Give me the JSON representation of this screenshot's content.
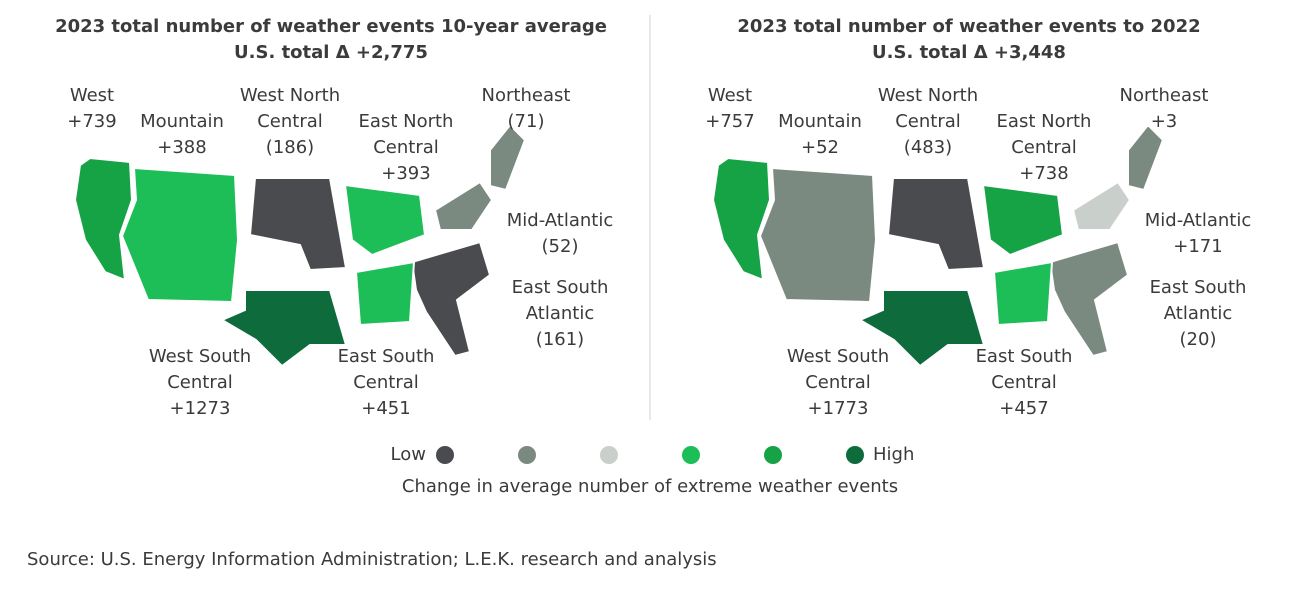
{
  "panels": [
    {
      "title": "2023 total number of weather events 10-year average",
      "subtitle": "U.S. total Δ +2,775",
      "regions": [
        {
          "name_lines": [
            "West"
          ],
          "value": "+739",
          "color": "#16a346"
        },
        {
          "name_lines": [
            "Mountain"
          ],
          "value": "+388",
          "color": "#1dbd58"
        },
        {
          "name_lines": [
            "West North",
            "Central"
          ],
          "value": "(186)",
          "color": "#4a4b4e"
        },
        {
          "name_lines": [
            "East North",
            "Central"
          ],
          "value": "+393",
          "color": "#1dbd58"
        },
        {
          "name_lines": [
            "Northeast"
          ],
          "value": "(71)",
          "color": "#7b8a80"
        },
        {
          "name_lines": [
            "Mid-Atlantic"
          ],
          "value": "(52)",
          "color": "#7b8a80"
        },
        {
          "name_lines": [
            "East South",
            "Atlantic"
          ],
          "value": "(161)",
          "color": "#4a4b4e"
        },
        {
          "name_lines": [
            "West South",
            "Central"
          ],
          "value": "+1273",
          "color": "#0e6b3b"
        },
        {
          "name_lines": [
            "East South",
            "Central"
          ],
          "value": "+451",
          "color": "#1dbd58"
        }
      ]
    },
    {
      "title": "2023 total number of weather events to 2022",
      "subtitle": "U.S. total Δ +3,448",
      "regions": [
        {
          "name_lines": [
            "West"
          ],
          "value": "+757",
          "color": "#16a346"
        },
        {
          "name_lines": [
            "Mountain"
          ],
          "value": "+52",
          "color": "#7b8a80"
        },
        {
          "name_lines": [
            "West North",
            "Central"
          ],
          "value": "(483)",
          "color": "#4a4b4e"
        },
        {
          "name_lines": [
            "East North",
            "Central"
          ],
          "value": "+738",
          "color": "#16a346"
        },
        {
          "name_lines": [
            "Northeast"
          ],
          "value": "+3",
          "color": "#7b8a80"
        },
        {
          "name_lines": [
            "Mid-Atlantic"
          ],
          "value": "+171",
          "color": "#c9cfcb"
        },
        {
          "name_lines": [
            "East South",
            "Atlantic"
          ],
          "value": "(20)",
          "color": "#7b8a80"
        },
        {
          "name_lines": [
            "West South",
            "Central"
          ],
          "value": "+1773",
          "color": "#0e6b3b"
        },
        {
          "name_lines": [
            "East South",
            "Central"
          ],
          "value": "+457",
          "color": "#1dbd58"
        }
      ]
    }
  ],
  "legend": {
    "low": "Low",
    "high": "High",
    "colors": [
      "#4a4b4e",
      "#7b8a80",
      "#c9cfcb",
      "#1dbd58",
      "#16a346",
      "#0e6b3b"
    ],
    "caption": "Change in average number of extreme weather events"
  },
  "source": "Source: U.S. Energy Information Administration; L.E.K. research and analysis"
}
